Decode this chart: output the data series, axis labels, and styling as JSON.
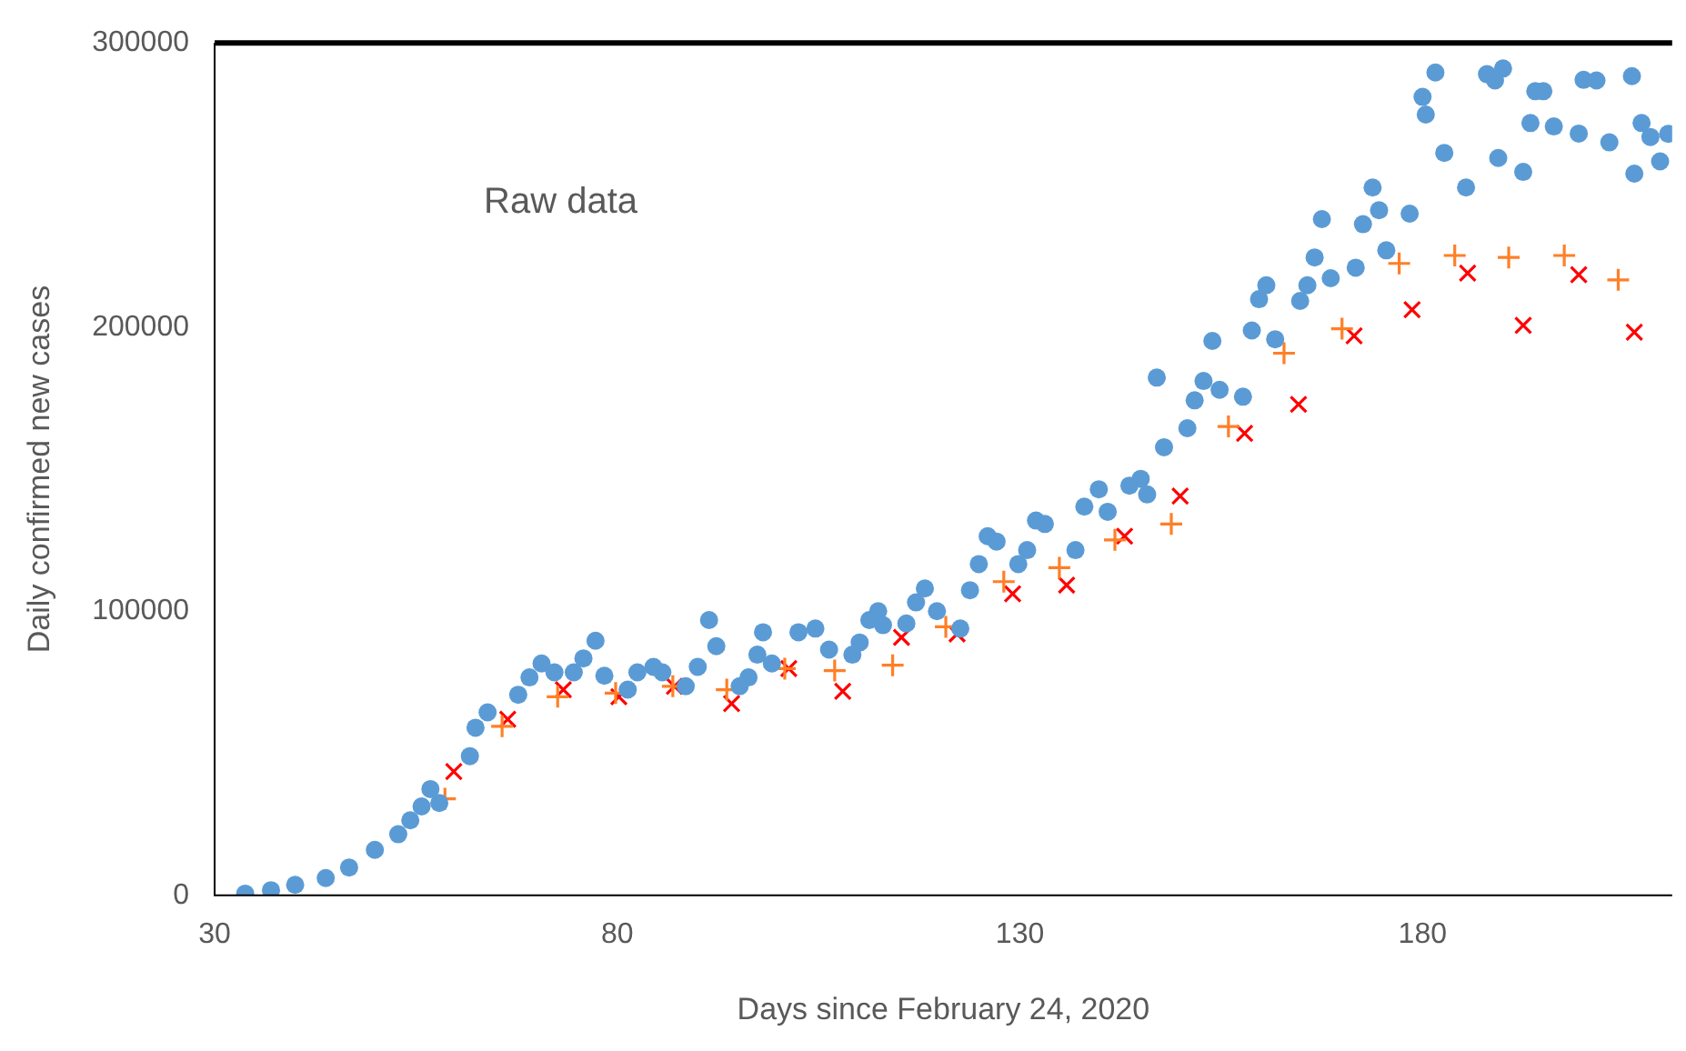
{
  "chart_data": {
    "type": "scatter",
    "xlabel": "Days since February 24, 2020",
    "ylabel": "Daily confirmed new cases",
    "annotations": [
      "Raw data"
    ],
    "xlim": [
      30,
      211
    ],
    "xticks": [
      30,
      80,
      130,
      180
    ],
    "ylim": [
      0,
      300000
    ],
    "yticks": [
      0,
      100000,
      200000,
      300000
    ],
    "grid": false,
    "legend": false,
    "series": [
      {
        "color": "#5b9bd5",
        "marker": "circle",
        "x": [
          33.8,
          37,
          40,
          43.8,
          46.7,
          49.9,
          52.8,
          54.3,
          55.7,
          56.8,
          57.9,
          61.7,
          62.4,
          63.9,
          67.7,
          69.1,
          70.6,
          72.2,
          74.6,
          75.8,
          77.3,
          78.4,
          81.3,
          82.5,
          84.5,
          85.6,
          88.5,
          90,
          91.4,
          92.3,
          95.2,
          96.3,
          97.4,
          98.1,
          99.2,
          102.5,
          104.6,
          106.3,
          109.2,
          110.1,
          111.3,
          112.4,
          113,
          115.9,
          117.1,
          118.2,
          119.7,
          122.6,
          123.8,
          124.9,
          126,
          127.1,
          129.8,
          130.9,
          132,
          133.1,
          136.9,
          138,
          139.8,
          140.9,
          143.6,
          145,
          145.8,
          147,
          147.9,
          150.8,
          151.7,
          152.8,
          153.9,
          154.8,
          157.7,
          158.8,
          159.7,
          160.6,
          161.7,
          164.8,
          165.7,
          166.6,
          167.5,
          168.6,
          171.7,
          172.6,
          173.8,
          174.6,
          175.5,
          178.4,
          180,
          180.4,
          181.6,
          182.7,
          185.4,
          188,
          189,
          189.4,
          190,
          192.5,
          193.4,
          194,
          195,
          196.3,
          199.4,
          200,
          201.6,
          203.2,
          206,
          206.3,
          207.2,
          208.3,
          209.5,
          210.5
        ],
        "values": [
          600,
          1800,
          3700,
          6100,
          9800,
          16000,
          21500,
          26400,
          31300,
          37400,
          32500,
          49000,
          59000,
          64400,
          70600,
          76700,
          81600,
          78500,
          78500,
          83400,
          89600,
          77300,
          72400,
          78500,
          80400,
          78500,
          73600,
          80400,
          96900,
          87700,
          73600,
          76700,
          84700,
          92600,
          81600,
          92600,
          93900,
          86500,
          84700,
          89000,
          96900,
          100000,
          95100,
          95700,
          103100,
          108000,
          100000,
          93900,
          107400,
          116600,
          126400,
          124500,
          116600,
          121500,
          131900,
          130700,
          121500,
          136800,
          142900,
          135000,
          144200,
          146600,
          141100,
          182200,
          157700,
          164400,
          174200,
          181000,
          195100,
          177900,
          175500,
          198800,
          209800,
          214700,
          195700,
          209200,
          214700,
          224500,
          238000,
          217200,
          220900,
          236200,
          249100,
          241100,
          227000,
          239900,
          281000,
          274800,
          289600,
          261300,
          249100,
          289000,
          286800,
          259500,
          291000,
          254600,
          271800,
          283000,
          283000,
          270600,
          268100,
          287000,
          286800,
          265000,
          288300,
          254000,
          271800,
          266900,
          258300,
          268000
        ]
      },
      {
        "color": "#ff7f27",
        "marker": "cross",
        "x": [
          58.6,
          65.7,
          72.6,
          79.8,
          86.9,
          93.6,
          100.8,
          107,
          114.2,
          120.8,
          128,
          134.9,
          141.8,
          148.8,
          155.9,
          162.8,
          170,
          177.1,
          184,
          190.7,
          197.6,
          204.3
        ],
        "values": [
          34000,
          59500,
          69900,
          71200,
          73600,
          72400,
          79800,
          79100,
          81000,
          94500,
          110400,
          115300,
          125100,
          130700,
          165000,
          190800,
          199400,
          222400,
          225200,
          224500,
          225200,
          216600
        ]
      },
      {
        "color": "#ff0000",
        "marker": "x",
        "x": [
          59.7,
          66.4,
          73.3,
          80.2,
          87.1,
          94.2,
          101.3,
          108,
          115.3,
          122.2,
          129.1,
          135.8,
          143,
          149.9,
          157.9,
          164.6,
          171.5,
          178.7,
          185.6,
          192.5,
          199.4,
          206.3
        ],
        "values": [
          43600,
          62000,
          72400,
          69900,
          73600,
          67500,
          79800,
          71800,
          90800,
          92000,
          106100,
          109200,
          126400,
          140500,
          162600,
          172800,
          196900,
          206100,
          219000,
          200600,
          218400,
          198200
        ]
      }
    ]
  }
}
